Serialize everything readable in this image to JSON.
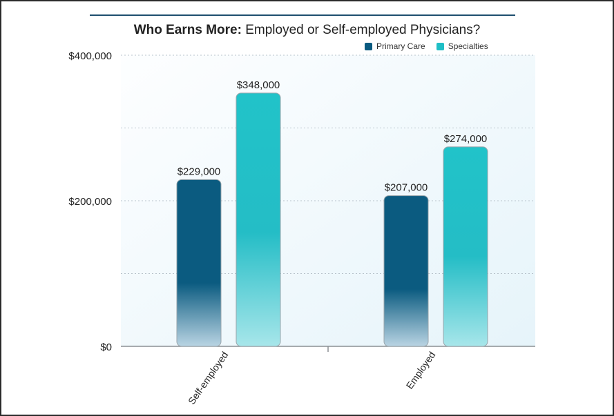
{
  "chart_data": {
    "type": "bar",
    "title_bold": "Who Earns More:",
    "title_rest": "Employed or Self-employed Physicians?",
    "categories": [
      "Self-employed",
      "Employed"
    ],
    "series": [
      {
        "name": "Primary Care",
        "values": [
          229000,
          207000
        ],
        "labels": [
          "$229,000",
          "$207,000"
        ],
        "color": "#0a5a80"
      },
      {
        "name": "Specialties",
        "values": [
          348000,
          274000
        ],
        "labels": [
          "$348,000",
          "$274,000"
        ],
        "color": "#1fbfc6"
      }
    ],
    "ylim": [
      0,
      400000
    ],
    "yticks": [
      0,
      200000,
      400000
    ],
    "ytick_labels": [
      "$0",
      "$200,000",
      "$400,000"
    ],
    "grid": true,
    "legend_position": "top-right",
    "xlabel": "",
    "ylabel": ""
  }
}
